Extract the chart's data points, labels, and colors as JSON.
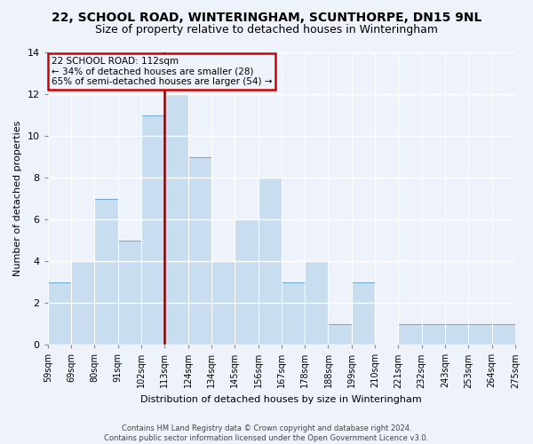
{
  "title_line1": "22, SCHOOL ROAD, WINTERINGHAM, SCUNTHORPE, DN15 9NL",
  "title_line2": "Size of property relative to detached houses in Winteringham",
  "xlabel": "Distribution of detached houses by size in Winteringham",
  "ylabel": "Number of detached properties",
  "footnote": "Contains HM Land Registry data © Crown copyright and database right 2024.\nContains public sector information licensed under the Open Government Licence v3.0.",
  "bin_labels": [
    "59sqm",
    "69sqm",
    "80sqm",
    "91sqm",
    "102sqm",
    "113sqm",
    "124sqm",
    "134sqm",
    "145sqm",
    "156sqm",
    "167sqm",
    "178sqm",
    "188sqm",
    "199sqm",
    "210sqm",
    "221sqm",
    "232sqm",
    "243sqm",
    "253sqm",
    "264sqm",
    "275sqm"
  ],
  "bar_values": [
    3,
    4,
    7,
    5,
    11,
    12,
    9,
    4,
    6,
    8,
    3,
    4,
    1,
    3,
    0,
    1,
    1,
    1,
    1,
    1
  ],
  "bar_color": "#c9ddf0",
  "bar_edge_color": "#6aaad4",
  "ylim": [
    0,
    14
  ],
  "yticks": [
    0,
    2,
    4,
    6,
    8,
    10,
    12,
    14
  ],
  "property_line_x": 5,
  "property_line_color": "#8b0000",
  "annotation_text": "22 SCHOOL ROAD: 112sqm\n← 34% of detached houses are smaller (28)\n65% of semi-detached houses are larger (54) →",
  "annotation_box_color": "#cc0000",
  "background_color": "#eef2fa",
  "grid_color": "#ffffff",
  "title_fontsize": 10,
  "subtitle_fontsize": 9,
  "ylabel_fontsize": 8,
  "xlabel_fontsize": 8,
  "tick_fontsize": 7,
  "footnote_fontsize": 6
}
